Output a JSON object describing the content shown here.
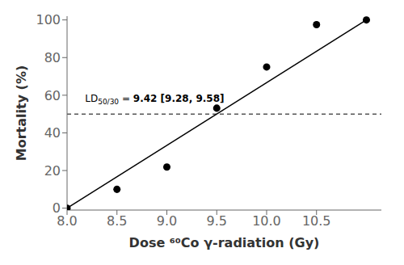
{
  "chart_data": {
    "type": "scatter",
    "x_label": "Dose ⁶⁰Co γ-radiation (Gy)",
    "y_label": "Mortality (%)",
    "xlim": [
      8,
      11.15
    ],
    "ylim": [
      -1,
      102
    ],
    "xticks": [
      {
        "value": 8,
        "label": "8.0"
      },
      8.5,
      {
        "value": 9,
        "label": "9.0"
      },
      9.5,
      {
        "value": 10,
        "label": "10.0"
      },
      10.5
    ],
    "yticks": [
      0,
      20,
      40,
      60,
      80,
      100
    ],
    "grid": false,
    "series": [
      {
        "type": "scatter",
        "color": "black",
        "marker": "circle",
        "x": [
          8.0,
          8.5,
          9.0,
          9.5,
          10.0,
          10.5,
          11.0
        ],
        "values": [
          0.0,
          10.0,
          21.875,
          53.125,
          75.0,
          97.5,
          100.0
        ]
      },
      {
        "type": "line",
        "color": "black",
        "line_style": "solid",
        "x": [
          8,
          11
        ],
        "values": [
          0,
          100
        ]
      }
    ],
    "reference_lines": [
      {
        "y": 50,
        "color": "black",
        "line_style": "dashed"
      }
    ],
    "annotations": [
      {
        "text": "LD50/30 = 9.42 [9.28, 9.58]",
        "x": 8.18,
        "y": 54
      }
    ]
  }
}
